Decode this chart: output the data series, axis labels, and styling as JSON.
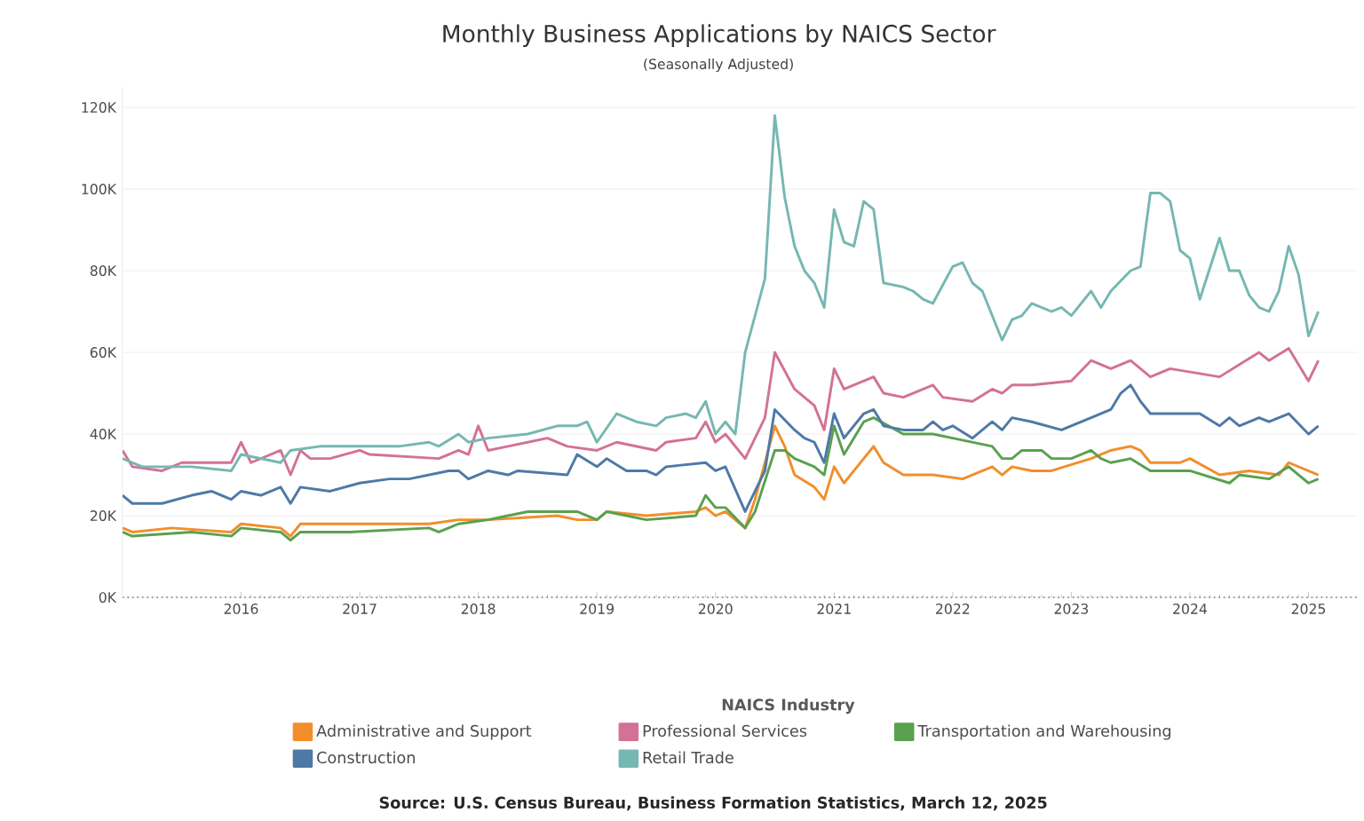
{
  "chart_data": {
    "type": "line",
    "title": "Monthly Business Applications by NAICS Sector",
    "subtitle": "(Seasonally Adjusted)",
    "legend_title": "NAICS Industry",
    "annotations": [
      "Source: U.S. Census Bureau, Business Formation Statistics, March 12, 2025"
    ],
    "xlim": [
      "2015-01",
      "2025-06"
    ],
    "xticks": [
      "2016",
      "2017",
      "2018",
      "2019",
      "2020",
      "2021",
      "2022",
      "2023",
      "2024",
      "2025"
    ],
    "ylim": [
      0,
      125000
    ],
    "yticks": [
      {
        "value": 0,
        "label": "0K"
      },
      {
        "value": 20000,
        "label": "20K"
      },
      {
        "value": 40000,
        "label": "40K"
      },
      {
        "value": 60000,
        "label": "60K"
      },
      {
        "value": 80000,
        "label": "80K"
      },
      {
        "value": 100000,
        "label": "100K"
      },
      {
        "value": 120000,
        "label": "120K"
      }
    ],
    "grid": "y",
    "legend": "bottom",
    "series": [
      {
        "name": "Administrative and Support",
        "color": "#f28e2b",
        "x": [
          "2015-01",
          "2015-02",
          "2015-06",
          "2015-12",
          "2016-01",
          "2016-05",
          "2016-06",
          "2016-07",
          "2016-12",
          "2017-08",
          "2017-11",
          "2018-02",
          "2018-09",
          "2018-11",
          "2019-01",
          "2019-02",
          "2019-06",
          "2019-11",
          "2019-12",
          "2020-01",
          "2020-02",
          "2020-04",
          "2020-05",
          "2020-07",
          "2020-08",
          "2020-09",
          "2020-11",
          "2020-12",
          "2021-01",
          "2021-02",
          "2021-04",
          "2021-05",
          "2021-06",
          "2021-08",
          "2021-11",
          "2022-02",
          "2022-05",
          "2022-06",
          "2022-07",
          "2022-09",
          "2022-11",
          "2023-03",
          "2023-05",
          "2023-07",
          "2023-08",
          "2023-09",
          "2023-12",
          "2024-01",
          "2024-04",
          "2024-07",
          "2024-10",
          "2024-11",
          "2025-02"
        ],
        "values": [
          17000,
          16000,
          17000,
          16000,
          18000,
          17000,
          15000,
          18000,
          18000,
          18000,
          19000,
          19000,
          20000,
          19000,
          19000,
          21000,
          20000,
          21000,
          22000,
          20000,
          21000,
          17000,
          24000,
          42000,
          37000,
          30000,
          27000,
          24000,
          32000,
          28000,
          34000,
          37000,
          33000,
          30000,
          30000,
          29000,
          32000,
          30000,
          32000,
          31000,
          31000,
          34000,
          36000,
          37000,
          36000,
          33000,
          33000,
          34000,
          30000,
          31000,
          30000,
          33000,
          30000
        ]
      },
      {
        "name": "Professional Services",
        "color": "#d37295",
        "x": [
          "2015-01",
          "2015-02",
          "2015-05",
          "2015-07",
          "2015-12",
          "2016-01",
          "2016-02",
          "2016-05",
          "2016-06",
          "2016-07",
          "2016-08",
          "2016-10",
          "2017-01",
          "2017-02",
          "2017-09",
          "2017-11",
          "2017-12",
          "2018-01",
          "2018-02",
          "2018-04",
          "2018-06",
          "2018-08",
          "2018-10",
          "2019-01",
          "2019-03",
          "2019-07",
          "2019-08",
          "2019-11",
          "2019-12",
          "2020-01",
          "2020-02",
          "2020-04",
          "2020-06",
          "2020-07",
          "2020-09",
          "2020-11",
          "2020-12",
          "2021-01",
          "2021-02",
          "2021-05",
          "2021-06",
          "2021-08",
          "2021-11",
          "2021-12",
          "2022-03",
          "2022-05",
          "2022-06",
          "2022-07",
          "2022-09",
          "2023-01",
          "2023-03",
          "2023-05",
          "2023-07",
          "2023-09",
          "2023-11",
          "2024-04",
          "2024-06",
          "2024-08",
          "2024-09",
          "2024-11",
          "2025-01",
          "2025-02"
        ],
        "values": [
          36000,
          32000,
          31000,
          33000,
          33000,
          38000,
          33000,
          36000,
          30000,
          36000,
          34000,
          34000,
          36000,
          35000,
          34000,
          36000,
          35000,
          42000,
          36000,
          37000,
          38000,
          39000,
          37000,
          36000,
          38000,
          36000,
          38000,
          39000,
          43000,
          38000,
          40000,
          34000,
          44000,
          60000,
          51000,
          47000,
          41000,
          56000,
          51000,
          54000,
          50000,
          49000,
          52000,
          49000,
          48000,
          51000,
          50000,
          52000,
          52000,
          53000,
          58000,
          56000,
          58000,
          54000,
          56000,
          54000,
          57000,
          60000,
          58000,
          61000,
          53000,
          58000
        ]
      },
      {
        "name": "Transportation and Warehousing",
        "color": "#59a14f",
        "x": [
          "2015-01",
          "2015-02",
          "2015-08",
          "2015-12",
          "2016-01",
          "2016-05",
          "2016-06",
          "2016-07",
          "2016-12",
          "2017-08",
          "2017-09",
          "2017-11",
          "2018-02",
          "2018-04",
          "2018-06",
          "2018-09",
          "2018-11",
          "2019-01",
          "2019-02",
          "2019-06",
          "2019-11",
          "2019-12",
          "2020-01",
          "2020-02",
          "2020-04",
          "2020-05",
          "2020-07",
          "2020-08",
          "2020-09",
          "2020-11",
          "2020-12",
          "2021-01",
          "2021-02",
          "2021-04",
          "2021-05",
          "2021-08",
          "2021-11",
          "2022-01",
          "2022-05",
          "2022-06",
          "2022-07",
          "2022-08",
          "2022-10",
          "2022-11",
          "2023-01",
          "2023-03",
          "2023-04",
          "2023-05",
          "2023-07",
          "2023-09",
          "2024-01",
          "2024-05",
          "2024-06",
          "2024-09",
          "2024-11",
          "2025-01",
          "2025-02"
        ],
        "values": [
          16000,
          15000,
          16000,
          15000,
          17000,
          16000,
          14000,
          16000,
          16000,
          17000,
          16000,
          18000,
          19000,
          20000,
          21000,
          21000,
          21000,
          19000,
          21000,
          19000,
          20000,
          25000,
          22000,
          22000,
          17000,
          21000,
          36000,
          36000,
          34000,
          32000,
          30000,
          42000,
          35000,
          43000,
          44000,
          40000,
          40000,
          39000,
          37000,
          34000,
          34000,
          36000,
          36000,
          34000,
          34000,
          36000,
          34000,
          33000,
          34000,
          31000,
          31000,
          28000,
          30000,
          29000,
          32000,
          28000,
          29000
        ]
      },
      {
        "name": "Construction",
        "color": "#4e79a7",
        "x": [
          "2015-01",
          "2015-02",
          "2015-05",
          "2015-08",
          "2015-10",
          "2015-12",
          "2016-01",
          "2016-03",
          "2016-05",
          "2016-06",
          "2016-07",
          "2016-10",
          "2017-01",
          "2017-04",
          "2017-06",
          "2017-10",
          "2017-11",
          "2017-12",
          "2018-02",
          "2018-04",
          "2018-05",
          "2018-10",
          "2018-11",
          "2019-01",
          "2019-02",
          "2019-04",
          "2019-06",
          "2019-07",
          "2019-08",
          "2019-12",
          "2020-01",
          "2020-02",
          "2020-04",
          "2020-06",
          "2020-07",
          "2020-09",
          "2020-10",
          "2020-11",
          "2020-12",
          "2021-01",
          "2021-02",
          "2021-04",
          "2021-05",
          "2021-06",
          "2021-08",
          "2021-10",
          "2021-11",
          "2021-12",
          "2022-01",
          "2022-03",
          "2022-05",
          "2022-06",
          "2022-07",
          "2022-09",
          "2022-12",
          "2023-03",
          "2023-05",
          "2023-06",
          "2023-07",
          "2023-08",
          "2023-09",
          "2023-12",
          "2024-02",
          "2024-04",
          "2024-05",
          "2024-06",
          "2024-08",
          "2024-09",
          "2024-11",
          "2025-01",
          "2025-02"
        ],
        "values": [
          25000,
          23000,
          23000,
          25000,
          26000,
          24000,
          26000,
          25000,
          27000,
          23000,
          27000,
          26000,
          28000,
          29000,
          29000,
          31000,
          31000,
          29000,
          31000,
          30000,
          31000,
          30000,
          35000,
          32000,
          34000,
          31000,
          31000,
          30000,
          32000,
          33000,
          31000,
          32000,
          21000,
          31000,
          46000,
          41000,
          39000,
          38000,
          33000,
          45000,
          39000,
          45000,
          46000,
          42000,
          41000,
          41000,
          43000,
          41000,
          42000,
          39000,
          43000,
          41000,
          44000,
          43000,
          41000,
          44000,
          46000,
          50000,
          52000,
          48000,
          45000,
          45000,
          45000,
          42000,
          44000,
          42000,
          44000,
          43000,
          45000,
          40000,
          42000
        ]
      },
      {
        "name": "Retail Trade",
        "color": "#76b7b2",
        "x": [
          "2015-01",
          "2015-03",
          "2015-08",
          "2015-12",
          "2016-01",
          "2016-05",
          "2016-06",
          "2016-09",
          "2017-01",
          "2017-05",
          "2017-08",
          "2017-09",
          "2017-11",
          "2017-12",
          "2018-02",
          "2018-06",
          "2018-09",
          "2018-11",
          "2018-12",
          "2019-01",
          "2019-03",
          "2019-05",
          "2019-07",
          "2019-08",
          "2019-10",
          "2019-11",
          "2019-12",
          "2020-01",
          "2020-02",
          "2020-03",
          "2020-04",
          "2020-06",
          "2020-07",
          "2020-08",
          "2020-09",
          "2020-10",
          "2020-11",
          "2020-12",
          "2021-01",
          "2021-02",
          "2021-03",
          "2021-04",
          "2021-05",
          "2021-06",
          "2021-08",
          "2021-09",
          "2021-10",
          "2021-11",
          "2022-01",
          "2022-02",
          "2022-03",
          "2022-04",
          "2022-06",
          "2022-07",
          "2022-08",
          "2022-09",
          "2022-11",
          "2022-12",
          "2023-01",
          "2023-03",
          "2023-04",
          "2023-05",
          "2023-07",
          "2023-08",
          "2023-09",
          "2023-10",
          "2023-11",
          "2023-12",
          "2024-01",
          "2024-02",
          "2024-04",
          "2024-05",
          "2024-06",
          "2024-07",
          "2024-08",
          "2024-09",
          "2024-10",
          "2024-11",
          "2024-12",
          "2025-01",
          "2025-02"
        ],
        "values": [
          34000,
          32000,
          32000,
          31000,
          35000,
          33000,
          36000,
          37000,
          37000,
          37000,
          38000,
          37000,
          40000,
          38000,
          39000,
          40000,
          42000,
          42000,
          43000,
          38000,
          45000,
          43000,
          42000,
          44000,
          45000,
          44000,
          48000,
          40000,
          43000,
          40000,
          60000,
          78000,
          118000,
          98000,
          86000,
          80000,
          77000,
          71000,
          95000,
          87000,
          86000,
          97000,
          95000,
          77000,
          76000,
          75000,
          73000,
          72000,
          81000,
          82000,
          77000,
          75000,
          63000,
          68000,
          69000,
          72000,
          70000,
          71000,
          69000,
          75000,
          71000,
          75000,
          80000,
          81000,
          99000,
          99000,
          97000,
          85000,
          83000,
          73000,
          88000,
          80000,
          80000,
          74000,
          71000,
          70000,
          75000,
          86000,
          79000,
          64000,
          70000
        ]
      }
    ]
  }
}
